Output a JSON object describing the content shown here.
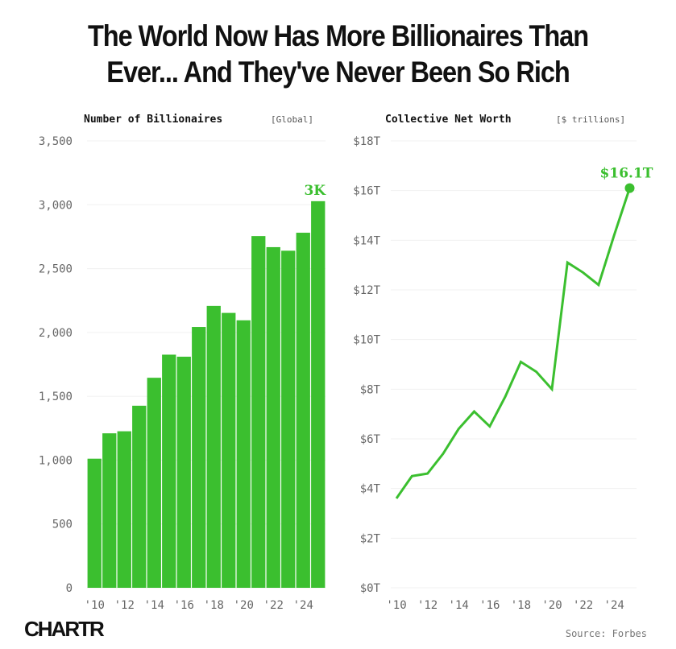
{
  "title": "The World Now Has More Billionaires Than Ever... And They've Never Been So Rich",
  "title_lines": [
    "The World Now Has More Billionaires Than",
    "Ever... And They've Never Been So Rich"
  ],
  "source": "Source: Forbes",
  "logo": "CHARTR",
  "chart_data": [
    {
      "type": "bar",
      "title": "Number of Billionaires",
      "unit": "[Global]",
      "categories": [
        2010,
        2011,
        2012,
        2013,
        2014,
        2015,
        2016,
        2017,
        2018,
        2019,
        2020,
        2021,
        2022,
        2023,
        2024,
        2025
      ],
      "values": [
        1011,
        1210,
        1226,
        1426,
        1645,
        1826,
        1810,
        2043,
        2208,
        2153,
        2095,
        2755,
        2668,
        2640,
        2781,
        3028
      ],
      "ylim": [
        0,
        3500
      ],
      "yticks": [
        0,
        500,
        1000,
        1500,
        2000,
        2500,
        3000,
        3500
      ],
      "ytick_labels": [
        "0",
        "500",
        "1,000",
        "1,500",
        "2,000",
        "2,500",
        "3,000",
        "3,500"
      ],
      "xtick_labels": [
        "'10",
        "'12",
        "'14",
        "'16",
        "'18",
        "'20",
        "'22",
        "'24"
      ],
      "annotation": "3K",
      "color": "#3bbf2f",
      "grid": true
    },
    {
      "type": "line",
      "title": "Collective Net Worth",
      "unit": "[$ trillions]",
      "x": [
        2010,
        2011,
        2012,
        2013,
        2014,
        2015,
        2016,
        2017,
        2018,
        2019,
        2020,
        2021,
        2022,
        2023,
        2024,
        2025
      ],
      "values": [
        3.6,
        4.5,
        4.6,
        5.4,
        6.4,
        7.1,
        6.5,
        7.7,
        9.1,
        8.7,
        8.0,
        13.1,
        12.7,
        12.2,
        14.2,
        16.1
      ],
      "ylim": [
        0,
        18
      ],
      "yticks": [
        0,
        2,
        4,
        6,
        8,
        10,
        12,
        14,
        16,
        18
      ],
      "ytick_labels": [
        "$0T",
        "$2T",
        "$4T",
        "$6T",
        "$8T",
        "$10T",
        "$12T",
        "$14T",
        "$16T",
        "$18T"
      ],
      "xtick_labels": [
        "'10",
        "'12",
        "'14",
        "'16",
        "'18",
        "'20",
        "'22",
        "'24"
      ],
      "annotation": "$16.1T",
      "color": "#3bbf2f",
      "grid": true
    }
  ]
}
